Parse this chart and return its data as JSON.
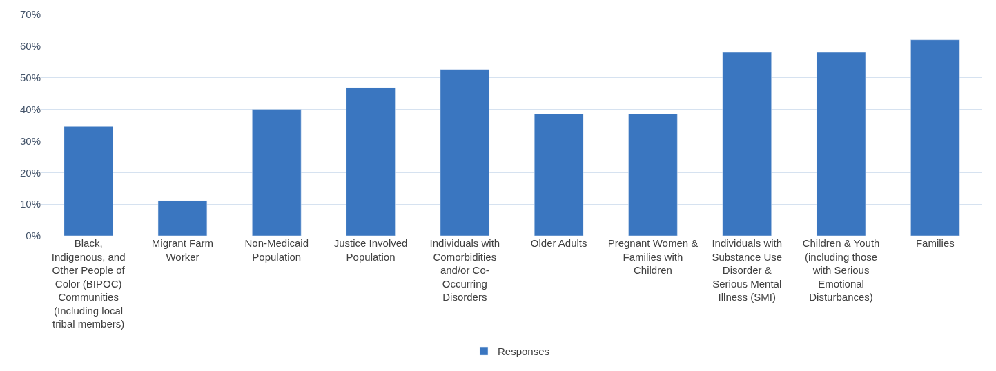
{
  "chart_data": {
    "type": "bar",
    "categories": [
      "Black, Indigenous, and Other People of Color (BIPOC) Communities (Including local tribal members)",
      "Migrant Farm Worker",
      "Non-Medicaid Population",
      "Justice Involved Population",
      "Individuals with Comorbidities and/or Co-Occurring Disorders",
      "Older Adults",
      "Pregnant Women & Families with Children",
      "Individuals with Substance Use Disorder & Serious Mental Illness (SMI)",
      "Children & Youth (including those with Serious Emotional Disturbances)",
      "Families"
    ],
    "series": [
      {
        "name": "Responses",
        "color": "#3a76c0",
        "values": [
          34.6,
          11.1,
          40.0,
          46.9,
          52.6,
          38.5,
          38.5,
          58.0,
          58.0,
          62.0
        ]
      }
    ],
    "ylim": [
      0,
      70
    ],
    "yticks": [
      {
        "value": 0,
        "label": "0%"
      },
      {
        "value": 10,
        "label": "10%"
      },
      {
        "value": 20,
        "label": "20%"
      },
      {
        "value": 30,
        "label": "30%"
      },
      {
        "value": 40,
        "label": "40%"
      },
      {
        "value": 50,
        "label": "50%"
      },
      {
        "value": 60,
        "label": "60%"
      },
      {
        "value": 70,
        "label": "70%"
      }
    ],
    "grid": "y",
    "legend": "bottom"
  }
}
